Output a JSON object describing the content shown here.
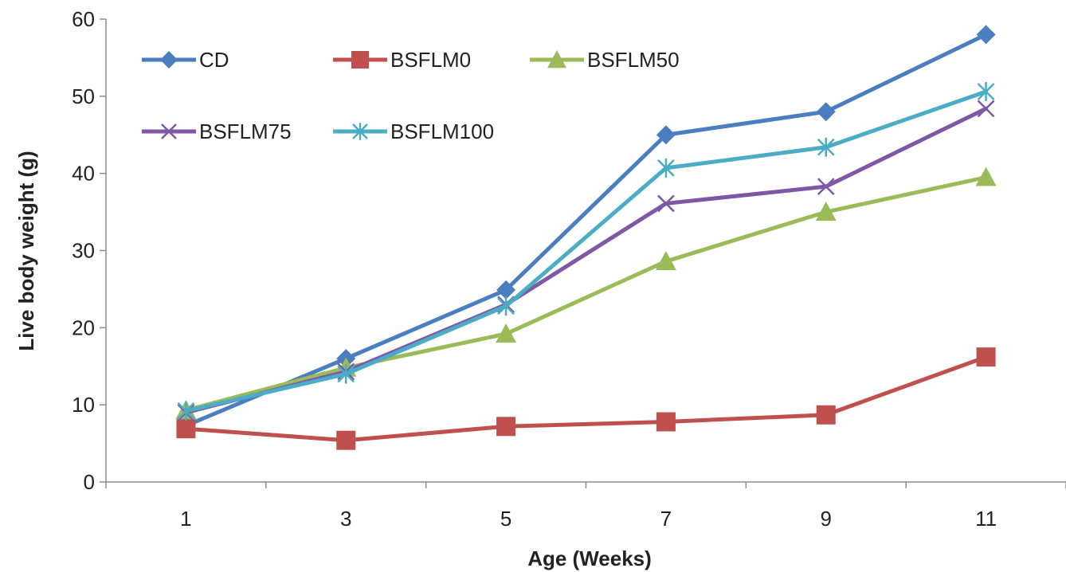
{
  "chart_data": {
    "type": "line",
    "title": "",
    "xlabel": "Age (Weeks)",
    "ylabel": "Live body weight (g)",
    "categories": [
      "1",
      "3",
      "5",
      "7",
      "9",
      "11"
    ],
    "ylim": [
      0,
      60
    ],
    "yticks": [
      "0",
      "10",
      "20",
      "30",
      "40",
      "50",
      "60"
    ],
    "grid": false,
    "legend_position": "top-left",
    "series": [
      {
        "name": "CD",
        "color": "#4a7ebf",
        "marker": "diamond",
        "values": [
          7.3,
          16.0,
          24.9,
          45.0,
          48.0,
          58.0
        ]
      },
      {
        "name": "BSFLM0",
        "color": "#c0504d",
        "marker": "square",
        "values": [
          6.9,
          5.4,
          7.2,
          7.8,
          8.7,
          16.2
        ]
      },
      {
        "name": "BSFLM50",
        "color": "#9bbb59",
        "marker": "triangle",
        "values": [
          9.3,
          14.8,
          19.2,
          28.6,
          35.0,
          39.5
        ]
      },
      {
        "name": "BSFLM75",
        "color": "#7e57a5",
        "marker": "x",
        "values": [
          9.0,
          14.3,
          23.0,
          36.1,
          38.3,
          48.4
        ]
      },
      {
        "name": "BSFLM100",
        "color": "#4bacc6",
        "marker": "asterisk",
        "values": [
          9.2,
          14.0,
          22.8,
          40.7,
          43.4,
          50.6
        ]
      }
    ]
  }
}
